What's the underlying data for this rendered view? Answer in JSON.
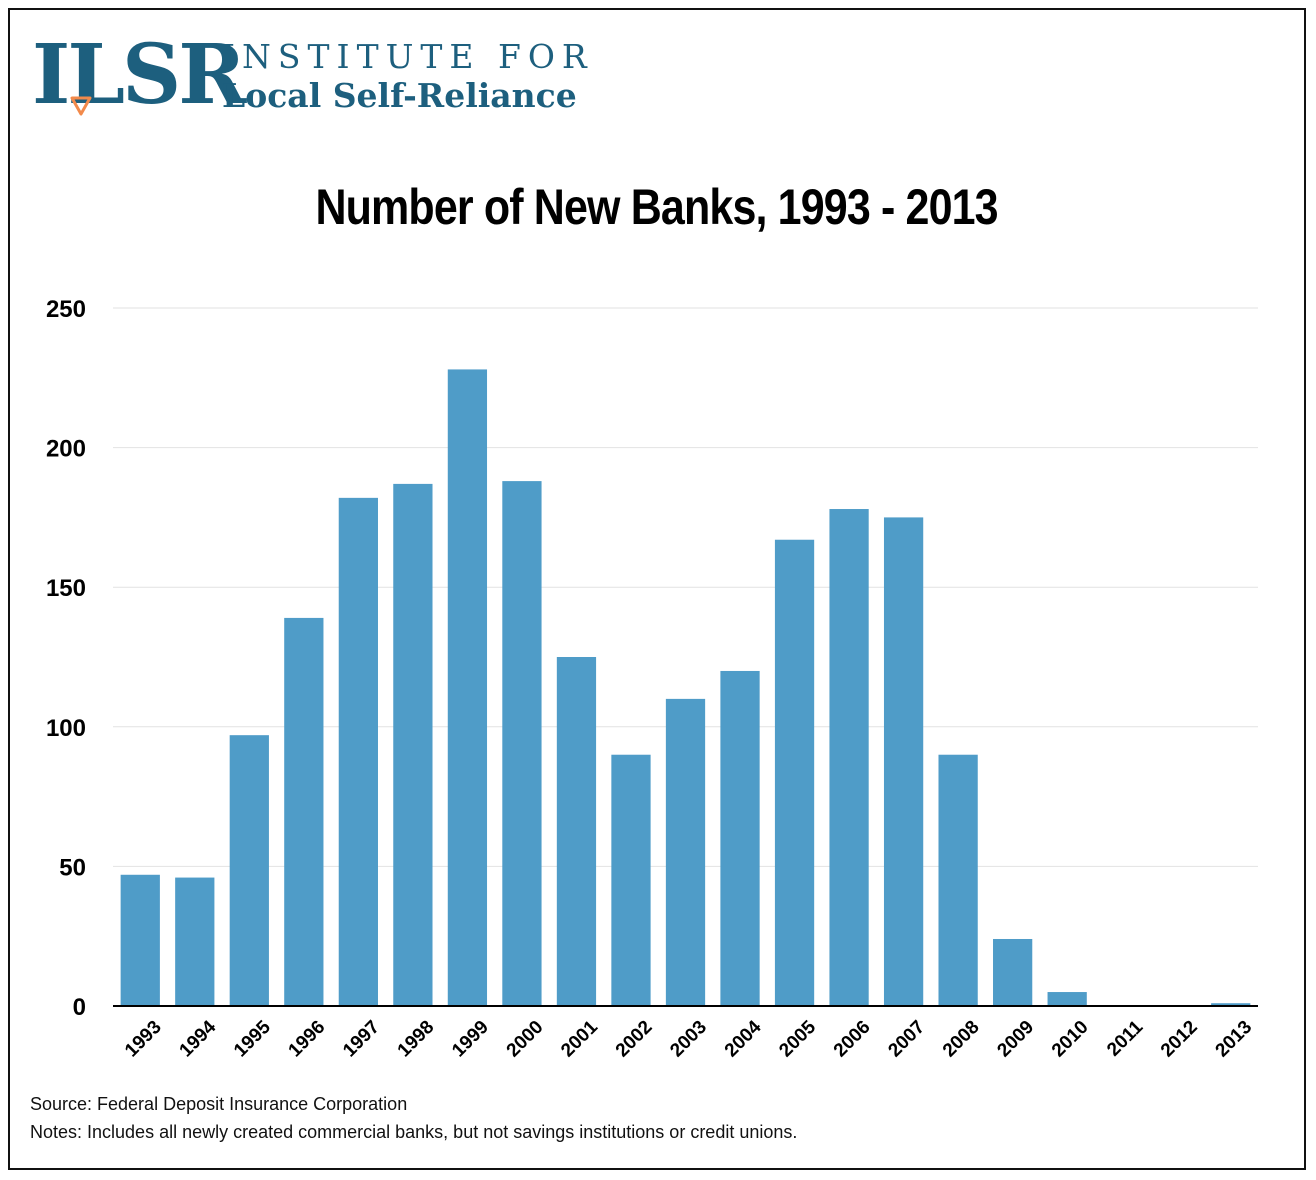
{
  "logo": {
    "mark": "ILSR",
    "line1": "INSTITUTE FOR",
    "line2": "Local Self-Reliance",
    "colors": {
      "primary": "#1d5f7e",
      "accent": "#f28a4b"
    }
  },
  "chart_data": {
    "type": "bar",
    "title": "Number of New Banks, 1993 - 2013",
    "xlabel": "",
    "ylabel": "",
    "categories": [
      "1993",
      "1994",
      "1995",
      "1996",
      "1997",
      "1998",
      "1999",
      "2000",
      "2001",
      "2002",
      "2003",
      "2004",
      "2005",
      "2006",
      "2007",
      "2008",
      "2009",
      "2010",
      "2011",
      "2012",
      "2013"
    ],
    "values": [
      47,
      46,
      97,
      139,
      182,
      187,
      228,
      188,
      125,
      90,
      110,
      120,
      167,
      178,
      175,
      90,
      24,
      5,
      0,
      0,
      1
    ],
    "ylim": [
      0,
      250
    ],
    "yticks": [
      0,
      50,
      100,
      150,
      200,
      250
    ],
    "grid": true,
    "bar_color": "#4f9cc8",
    "grid_color": "#e2e2e2"
  },
  "footer": {
    "source": "Source: Federal Deposit Insurance Corporation",
    "notes": "Notes: Includes all newly created commercial banks, but not savings institutions or credit unions."
  }
}
